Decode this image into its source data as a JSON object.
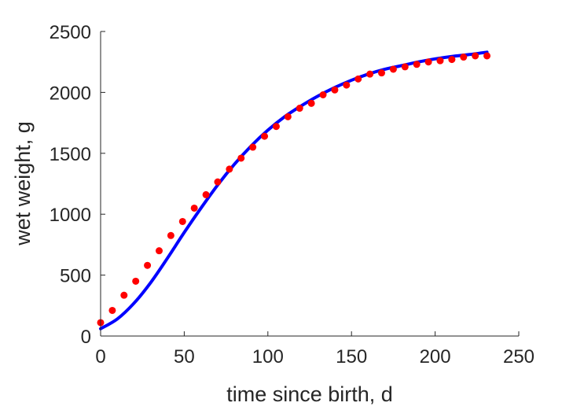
{
  "chart_data": {
    "type": "scatter",
    "xlabel": "time since birth, d",
    "ylabel": "wet weight, g",
    "xlim": [
      0,
      250
    ],
    "ylim": [
      0,
      2500
    ],
    "xticks": [
      0,
      50,
      100,
      150,
      200,
      250
    ],
    "yticks": [
      0,
      500,
      1000,
      1500,
      2000,
      2500
    ],
    "xtick_labels": [
      "0",
      "50",
      "100",
      "150",
      "200",
      "250"
    ],
    "ytick_labels": [
      "0",
      "500",
      "1000",
      "1500",
      "2000",
      "2500"
    ],
    "grid": false,
    "series": [
      {
        "kind": "points",
        "color": "#ff0000",
        "x": [
          0,
          7,
          14,
          21,
          28,
          35,
          42,
          49,
          56,
          63,
          70,
          77,
          84,
          91,
          98,
          105,
          112,
          119,
          126,
          133,
          140,
          147,
          154,
          161,
          168,
          175,
          182,
          189,
          196,
          203,
          210,
          217,
          224,
          231
        ],
        "y": [
          110,
          210,
          335,
          450,
          580,
          700,
          825,
          940,
          1050,
          1160,
          1265,
          1370,
          1460,
          1550,
          1640,
          1720,
          1800,
          1870,
          1910,
          1980,
          2020,
          2060,
          2110,
          2150,
          2160,
          2190,
          2210,
          2230,
          2250,
          2260,
          2270,
          2290,
          2300,
          2300
        ]
      },
      {
        "kind": "line",
        "color": "#0000ff",
        "x": [
          0,
          10,
          20,
          30,
          40,
          50,
          60,
          70,
          80,
          90,
          100,
          110,
          120,
          130,
          140,
          150,
          160,
          170,
          180,
          190,
          200,
          210,
          220,
          231
        ],
        "y": [
          60,
          140,
          270,
          440,
          640,
          850,
          1050,
          1240,
          1410,
          1560,
          1690,
          1800,
          1890,
          1970,
          2040,
          2100,
          2150,
          2190,
          2220,
          2250,
          2275,
          2295,
          2310,
          2330
        ]
      }
    ]
  }
}
